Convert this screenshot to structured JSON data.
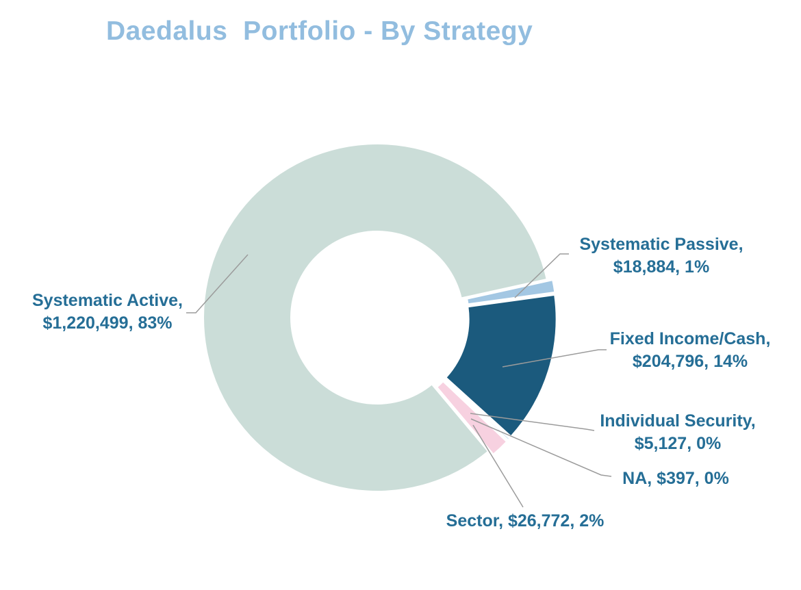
{
  "chart_data": {
    "type": "pie",
    "subtype": "doughnut",
    "title": "Daedalus  Portfolio - By Strategy",
    "legend": "none",
    "data_labels": "category, value, percentage",
    "slices": [
      {
        "name": "Systematic Active",
        "value": 1220499,
        "pct": "83%",
        "color": "#CBDDD8",
        "label_lines": [
          "Systematic Active,",
          "$1,220,499, 83%"
        ]
      },
      {
        "name": "Systematic Passive",
        "value": 18884,
        "pct": "1%",
        "color": "#A3C7E3",
        "label_lines": [
          "Systematic Passive,",
          "$18,884, 1%"
        ]
      },
      {
        "name": "Fixed Income/Cash",
        "value": 204796,
        "pct": "14%",
        "color": "#1B5A7D",
        "label_lines": [
          "Fixed Income/Cash,",
          "$204,796, 14%"
        ]
      },
      {
        "name": "Individual Security",
        "value": 5127,
        "pct": "0%",
        "color": "#BCD8EC",
        "label_lines": [
          "Individual Security,",
          "$5,127, 0%"
        ]
      },
      {
        "name": "NA",
        "value": 397,
        "pct": "0%",
        "color": "#D9E6F2",
        "label_lines": [
          "NA, $397, 0%"
        ]
      },
      {
        "name": "Sector",
        "value": 26772,
        "pct": "2%",
        "color": "#F7D1E0",
        "label_lines": [
          "Sector, $26,772, 2%"
        ]
      }
    ],
    "colors": {
      "title_text": "#92BDDF",
      "label_text": "#256E96",
      "leader_line": "#9B9B9B",
      "background": "#FFFFFF"
    }
  }
}
